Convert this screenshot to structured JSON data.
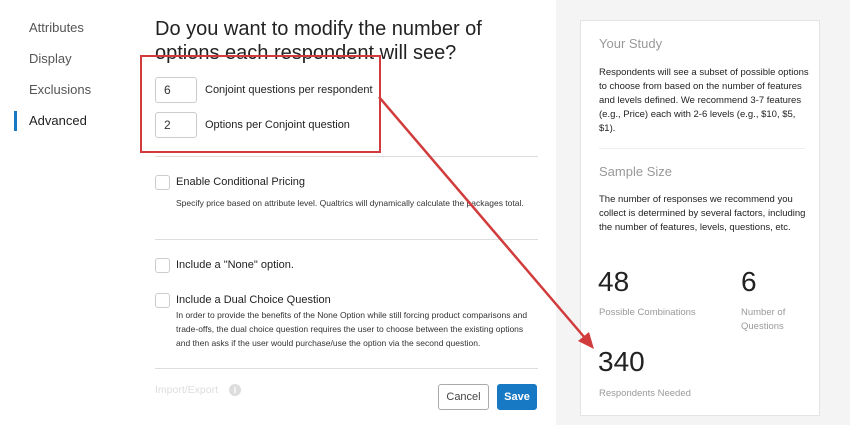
{
  "nav": {
    "items": [
      {
        "label": "Attributes"
      },
      {
        "label": "Display"
      },
      {
        "label": "Exclusions"
      },
      {
        "label": "Advanced",
        "active": true
      }
    ]
  },
  "main": {
    "title": "Do you want to modify the number of options each respondent will see?",
    "fields": [
      {
        "value": "6",
        "label": "Conjoint questions per respondent"
      },
      {
        "value": "2",
        "label": "Options per Conjoint question"
      }
    ],
    "options": [
      {
        "label": "Enable Conditional Pricing",
        "checked": false,
        "description": "Specify price based on attribute level. Qualtrics will dynamically calculate the packages total."
      },
      {
        "label": "Include a \"None\" option.",
        "checked": false
      },
      {
        "label": "Include a Dual Choice Question",
        "checked": false,
        "description": "In order to provide the benefits of the None Option while still forcing product comparisons and trade-offs, the dual choice question requires the user to choose between the existing options and then asks if the user would purchase/use the option via the second question."
      }
    ],
    "import_export": "Import/Export",
    "cancel": "Cancel",
    "save": "Save"
  },
  "side": {
    "study_title": "Your Study",
    "study_text": "Respondents will see a subset of possible options to choose from based on the number of features and levels defined. We recommend 3-7 features (e.g., Price) each with 2-6 levels (e.g., $10, $5, $1).",
    "sample_title": "Sample Size",
    "sample_text": "The number of responses we recommend you collect is determined by several factors, including the number of features, levels, questions, etc.",
    "stats": [
      {
        "value": "48",
        "label": "Possible Combinations"
      },
      {
        "value": "6",
        "label": "Number of Questions"
      },
      {
        "value": "340",
        "label": "Respondents Needed"
      }
    ]
  },
  "colors": {
    "accent": "#1779c3",
    "annotation": "#d23b3b"
  }
}
